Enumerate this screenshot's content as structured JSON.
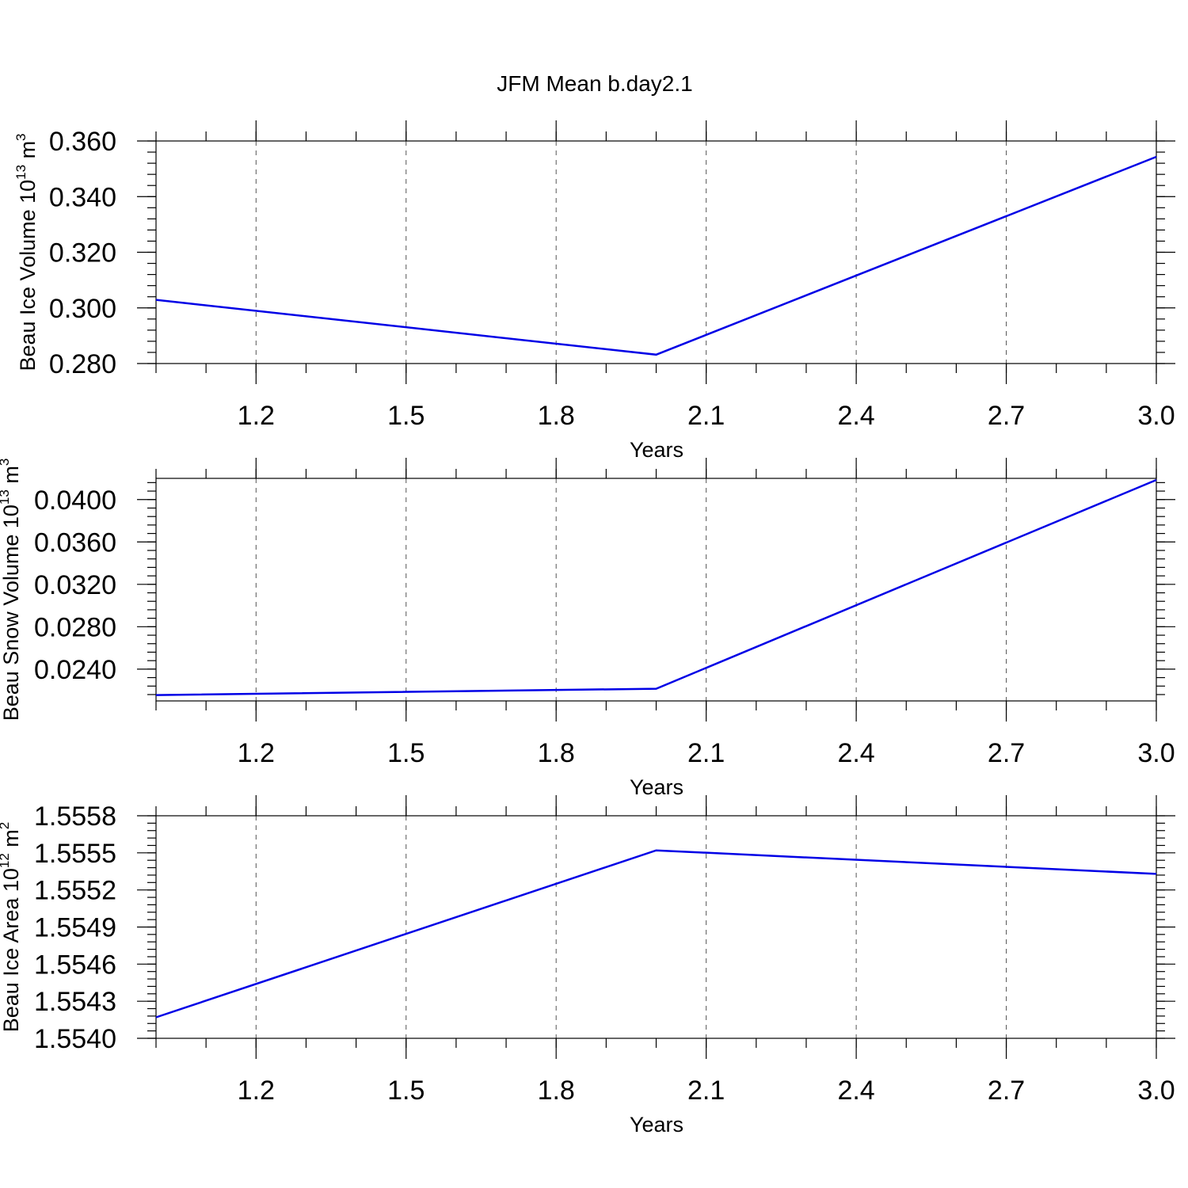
{
  "title": "JFM Mean b.day2.1",
  "colors": {
    "series": "#0000e6"
  },
  "chart_data": [
    {
      "type": "line",
      "ylabel": "Beau Ice Volume 10",
      "ylabel_exp": "13",
      "ylabel_unit": " m",
      "ylabel_unit_exp": "3",
      "xlabel": "Years",
      "xlim": [
        1.0,
        3.0
      ],
      "ylim": [
        0.28,
        0.36
      ],
      "xticks": [
        "1.2",
        "1.5",
        "1.8",
        "2.1",
        "2.4",
        "2.7",
        "3.0"
      ],
      "yticks": [
        "0.280",
        "0.300",
        "0.320",
        "0.340",
        "0.360"
      ],
      "grid": "x",
      "x": [
        1.0,
        2.0,
        3.0
      ],
      "y": [
        0.3029,
        0.2832,
        0.3543
      ]
    },
    {
      "type": "line",
      "ylabel": "Beau Snow Volume 10",
      "ylabel_exp": "13",
      "ylabel_unit": " m",
      "ylabel_unit_exp": "3",
      "xlabel": "Years",
      "xlim": [
        1.0,
        3.0
      ],
      "ylim": [
        0.021,
        0.042
      ],
      "xticks": [
        "1.2",
        "1.5",
        "1.8",
        "2.1",
        "2.4",
        "2.7",
        "3.0"
      ],
      "yticks": [
        "0.0240",
        "0.0280",
        "0.0320",
        "0.0360",
        "0.0400"
      ],
      "grid": "x",
      "x": [
        1.0,
        2.0,
        3.0
      ],
      "y": [
        0.02155,
        0.02215,
        0.04185
      ]
    },
    {
      "type": "line",
      "ylabel": "Beau Ice Area 10",
      "ylabel_exp": "12",
      "ylabel_unit": " m",
      "ylabel_unit_exp": "2",
      "xlabel": "Years",
      "xlim": [
        1.0,
        3.0
      ],
      "ylim": [
        1.554,
        1.5558
      ],
      "xticks": [
        "1.2",
        "1.5",
        "1.8",
        "2.1",
        "2.4",
        "2.7",
        "3.0"
      ],
      "yticks": [
        "1.5540",
        "1.5543",
        "1.5546",
        "1.5549",
        "1.5552",
        "1.5555",
        "1.5558"
      ],
      "grid": "x",
      "x": [
        1.0,
        2.0,
        3.0
      ],
      "y": [
        1.55417,
        1.55552,
        1.55533
      ]
    }
  ]
}
